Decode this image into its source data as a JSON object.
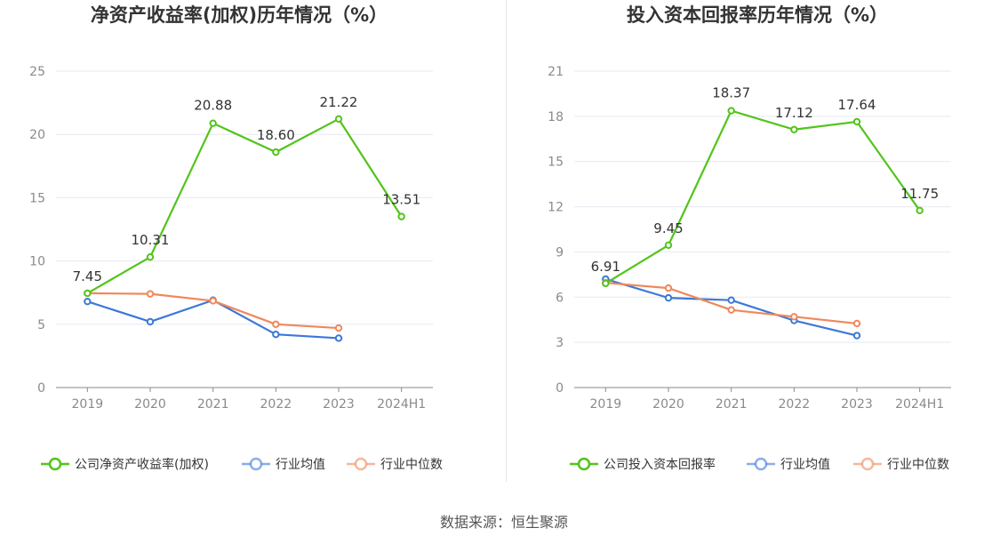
{
  "colors": {
    "company": "#52c41a",
    "industry_avg": "#3c78d8",
    "industry_median": "#f0885a",
    "grid": "#e6e9f0",
    "axis": "#8a8a8a"
  },
  "source": "数据来源：恒生聚源",
  "chart_data": [
    {
      "type": "line",
      "title": "净资产收益率(加权)历年情况（%）",
      "categories": [
        "2019",
        "2020",
        "2021",
        "2022",
        "2023",
        "2024H1"
      ],
      "ylim": [
        0,
        25
      ],
      "yticks": [
        "0",
        "5",
        "10",
        "15",
        "20",
        "25"
      ],
      "ytick_values": [
        0,
        5,
        10,
        15,
        20,
        25
      ],
      "series": [
        {
          "name": "公司净资产收益率(加权)",
          "key": "company",
          "values": [
            7.45,
            10.31,
            20.88,
            18.6,
            21.22,
            13.51
          ],
          "labels": [
            "7.45",
            "10.31",
            "20.88",
            "18.60",
            "21.22",
            "13.51"
          ]
        },
        {
          "name": "行业均值",
          "key": "industry_avg",
          "values": [
            6.8,
            5.2,
            6.9,
            4.2,
            3.9,
            null
          ]
        },
        {
          "name": "行业中位数",
          "key": "industry_median",
          "values": [
            7.45,
            7.4,
            6.85,
            5.0,
            4.7,
            null
          ]
        }
      ]
    },
    {
      "type": "line",
      "title": "投入资本回报率历年情况（%）",
      "categories": [
        "2019",
        "2020",
        "2021",
        "2022",
        "2023",
        "2024H1"
      ],
      "ylim": [
        0,
        21
      ],
      "yticks": [
        "0",
        "3",
        "6",
        "9",
        "12",
        "15",
        "18",
        "21"
      ],
      "ytick_values": [
        0,
        3,
        6,
        9,
        12,
        15,
        18,
        21
      ],
      "series": [
        {
          "name": "公司投入资本回报率",
          "key": "company",
          "values": [
            6.91,
            9.45,
            18.37,
            17.12,
            17.64,
            11.75
          ],
          "labels": [
            "6.91",
            "9.45",
            "18.37",
            "17.12",
            "17.64",
            "11.75"
          ]
        },
        {
          "name": "行业均值",
          "key": "industry_avg",
          "values": [
            7.2,
            5.95,
            5.8,
            4.45,
            3.45,
            null
          ]
        },
        {
          "name": "行业中位数",
          "key": "industry_median",
          "values": [
            6.95,
            6.6,
            5.15,
            4.7,
            4.25,
            null
          ]
        }
      ]
    }
  ]
}
